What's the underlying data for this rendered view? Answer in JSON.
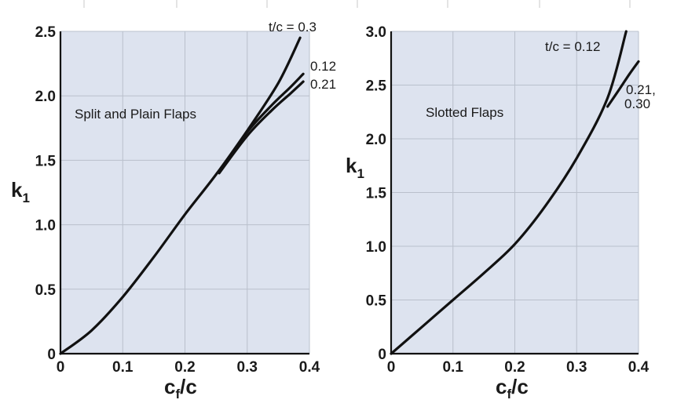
{
  "chart_data": [
    {
      "type": "line",
      "annotation": "Split and Plain Flaps",
      "xlabel": "c",
      "xlabel_sub": "f",
      "xlabel_suffix": "/c",
      "ylabel": "k",
      "ylabel_sub": "1",
      "xlim": [
        0,
        0.4
      ],
      "ylim": [
        0,
        2.5
      ],
      "xticks": [
        "0",
        "0.1",
        "0.2",
        "0.3",
        "0.4"
      ],
      "yticks": [
        "0",
        "0.5",
        "1.0",
        "1.5",
        "2.0",
        "2.5"
      ],
      "grid": true,
      "series": [
        {
          "name": "t/c = 0.3",
          "x": [
            0,
            0.05,
            0.1,
            0.15,
            0.2,
            0.25,
            0.3,
            0.35,
            0.385
          ],
          "y": [
            0,
            0.18,
            0.44,
            0.75,
            1.08,
            1.39,
            1.73,
            2.1,
            2.45
          ]
        },
        {
          "name": "0.12",
          "x": [
            0.26,
            0.3,
            0.34,
            0.37,
            0.39
          ],
          "y": [
            1.45,
            1.72,
            1.93,
            2.07,
            2.17
          ]
        },
        {
          "name": "0.21",
          "x": [
            0.255,
            0.3,
            0.34,
            0.37,
            0.39
          ],
          "y": [
            1.4,
            1.69,
            1.89,
            2.02,
            2.11
          ]
        }
      ]
    },
    {
      "type": "line",
      "annotation": "Slotted Flaps",
      "xlabel": "c",
      "xlabel_sub": "f",
      "xlabel_suffix": "/c",
      "ylabel": "k",
      "ylabel_sub": "1",
      "xlim": [
        0,
        0.4
      ],
      "ylim": [
        0,
        3.0
      ],
      "xticks": [
        "0",
        "0.1",
        "0.2",
        "0.3",
        "0.4"
      ],
      "yticks": [
        "0",
        "0.5",
        "1.0",
        "1.5",
        "2.0",
        "2.5",
        "3.0"
      ],
      "grid": true,
      "series": [
        {
          "name": "t/c = 0.12",
          "x": [
            0,
            0.05,
            0.1,
            0.15,
            0.2,
            0.25,
            0.3,
            0.35,
            0.38
          ],
          "y": [
            0,
            0.25,
            0.5,
            0.75,
            1.02,
            1.38,
            1.82,
            2.38,
            3.0
          ]
        },
        {
          "name": "0.21, 0.30",
          "x": [
            0.35,
            0.37,
            0.385,
            0.4
          ],
          "y": [
            2.3,
            2.47,
            2.6,
            2.72
          ]
        }
      ]
    }
  ]
}
